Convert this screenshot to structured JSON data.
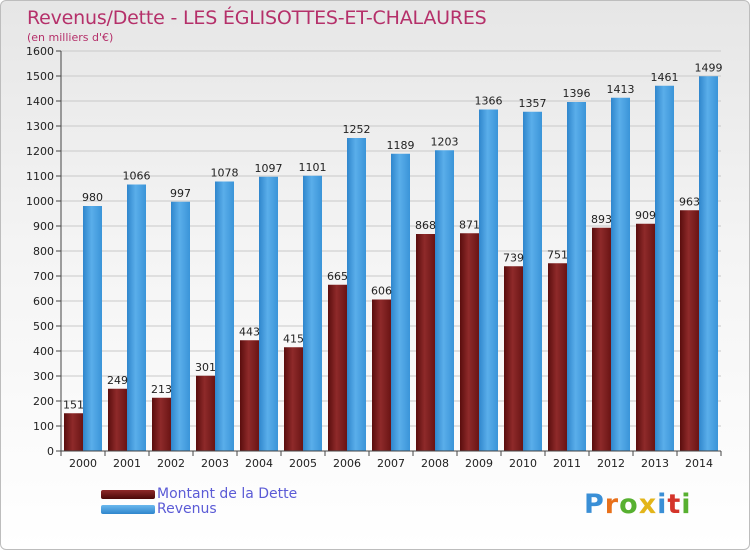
{
  "header": {
    "title": "Revenus/Dette - LES ÉGLISOTTES-ET-CHALAURES",
    "subtitle": "(en milliers d'€)"
  },
  "colors": {
    "dette": "#7a1a1a",
    "revenus": "#3f9ee2",
    "title": "#b5306a",
    "legend_text": "#5b5bd6"
  },
  "legend": {
    "items": [
      {
        "label": "Montant de la Dette",
        "color": "#7a1a1a"
      },
      {
        "label": "Revenus",
        "color": "#3f9ee2"
      }
    ]
  },
  "logo": {
    "text": "Proxiti",
    "letter_colors": [
      "#3a8fd6",
      "#e8701a",
      "#57b030",
      "#e3b51a",
      "#3a8fd6",
      "#d4342a",
      "#57b030"
    ]
  },
  "chart_data": {
    "type": "bar",
    "categories": [
      "2000",
      "2001",
      "2002",
      "2003",
      "2004",
      "2005",
      "2006",
      "2007",
      "2008",
      "2009",
      "2010",
      "2011",
      "2012",
      "2013",
      "2014"
    ],
    "series": [
      {
        "name": "Montant de la Dette",
        "values": [
          151,
          249,
          213,
          301,
          443,
          415,
          665,
          606,
          868,
          871,
          739,
          751,
          893,
          909,
          963
        ]
      },
      {
        "name": "Revenus",
        "values": [
          980,
          1066,
          997,
          1078,
          1097,
          1101,
          1252,
          1189,
          1203,
          1366,
          1357,
          1396,
          1413,
          1461,
          1499
        ]
      }
    ],
    "ylim": [
      0,
      1600
    ],
    "ytick_step": 100,
    "grid": true,
    "legend_position": "bottom-left"
  }
}
